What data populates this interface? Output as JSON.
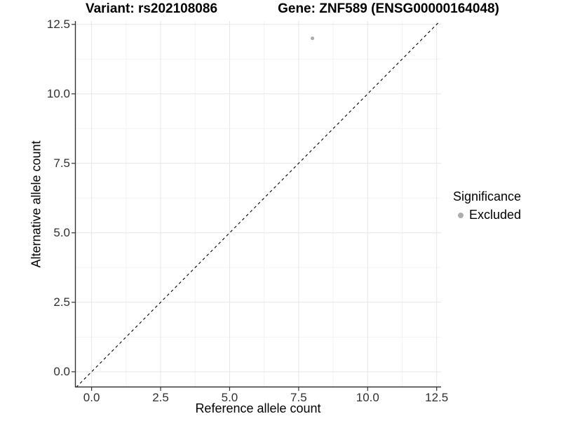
{
  "header": {
    "title_left": "Variant: rs202108086",
    "title_right": "Gene: ZNF589 (ENSG00000164048)"
  },
  "legend": {
    "title": "Significance",
    "items": [
      {
        "label": "Excluded",
        "color": "#adadad",
        "marker": "circle"
      }
    ]
  },
  "chart_data": {
    "type": "scatter",
    "title": "Variant: rs202108086 | Gene: ZNF589 (ENSG00000164048)",
    "xlabel": "Reference allele count",
    "ylabel": "Alternative allele count",
    "xlim": [
      -0.6,
      12.66
    ],
    "ylim": [
      -0.56,
      12.62
    ],
    "xticks": [
      0,
      2.5,
      5,
      7.5,
      10,
      12.5
    ],
    "yticks": [
      0,
      2.5,
      5,
      7.5,
      10,
      12.5
    ],
    "xtick_labels": [
      "0.0",
      "2.5",
      "5.0",
      "7.5",
      "10.0",
      "12.5"
    ],
    "ytick_labels": [
      "0.0",
      "2.5",
      "5.0",
      "7.5",
      "10.0",
      "12.5"
    ],
    "minor_xticks": [
      1.25,
      3.75,
      6.25,
      8.75,
      11.25
    ],
    "minor_yticks": [
      1.25,
      3.75,
      6.25,
      8.75,
      11.25
    ],
    "grid": "major-and-minor",
    "legend_position": "right",
    "legend_title": "Significance",
    "series": [
      {
        "name": "Excluded",
        "color": "#adadad",
        "points": [
          {
            "x": 8,
            "y": 12
          }
        ]
      }
    ],
    "reference_line": {
      "type": "identity",
      "equation": "y = x",
      "style": "dashed",
      "color": "#000000"
    },
    "style_colors": {
      "grid_major": "#e6e6e6",
      "grid_minor": "#f3f3f3",
      "axis_line": "#333333",
      "tick_mark": "#333333",
      "tick_text": "#303030",
      "point": "#adadad"
    }
  }
}
